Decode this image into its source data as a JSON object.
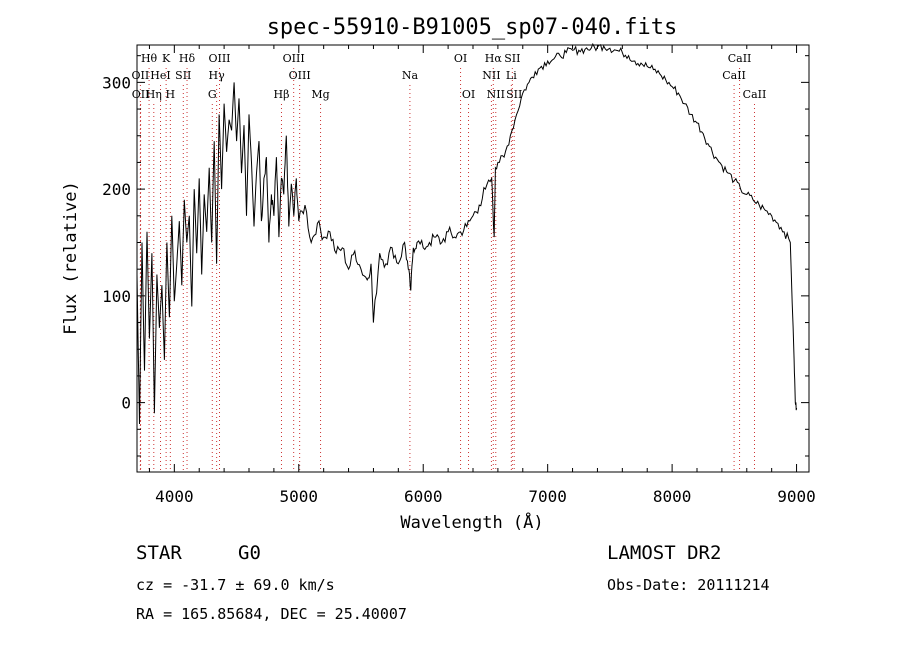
{
  "chart_data": {
    "type": "line",
    "title": "spec-55910-B91005_sp07-040.fits",
    "xlabel": "Wavelength (Å)",
    "ylabel": "Flux (relative)",
    "xlim": [
      3700,
      9100
    ],
    "ylim": [
      -65,
      335
    ],
    "xticks": [
      4000,
      5000,
      6000,
      7000,
      8000,
      9000
    ],
    "xtick_labels": [
      "4000",
      "5000",
      "6000",
      "7000",
      "8000",
      "9000"
    ],
    "yticks": [
      0,
      100,
      200,
      300
    ],
    "ytick_labels": [
      "0",
      "100",
      "200",
      "300"
    ],
    "grid": false,
    "series": [
      {
        "x": [
          3700,
          3720,
          3740,
          3760,
          3780,
          3800,
          3820,
          3840,
          3860,
          3880,
          3900,
          3920,
          3940,
          3960,
          3980,
          4000,
          4020,
          4040,
          4060,
          4080,
          4100,
          4120,
          4140,
          4160,
          4180,
          4200,
          4220,
          4240,
          4260,
          4280,
          4300,
          4320,
          4340,
          4360,
          4380,
          4400,
          4420,
          4440,
          4460,
          4480,
          4500,
          4520,
          4540,
          4560,
          4580,
          4600,
          4620,
          4640,
          4660,
          4680,
          4700,
          4720,
          4740,
          4760,
          4780,
          4800,
          4820,
          4840,
          4860,
          4880,
          4900,
          4920,
          4940,
          4960,
          4980,
          5000,
          5050,
          5100,
          5150,
          5200,
          5250,
          5300,
          5350,
          5400,
          5450,
          5500,
          5550,
          5580,
          5600,
          5650,
          5700,
          5750,
          5800,
          5850,
          5880,
          5900,
          5920,
          5950,
          6000,
          6050,
          6100,
          6150,
          6200,
          6250,
          6300,
          6350,
          6400,
          6450,
          6500,
          6550,
          6570,
          6580,
          6600,
          6650,
          6700,
          6750,
          6800,
          6850,
          6900,
          6950,
          7000,
          7050,
          7100,
          7150,
          7200,
          7250,
          7300,
          7350,
          7400,
          7450,
          7500,
          7550,
          7600,
          7650,
          7700,
          7750,
          7800,
          7850,
          7900,
          7950,
          8000,
          8050,
          8100,
          8150,
          8200,
          8250,
          8300,
          8350,
          8400,
          8450,
          8500,
          8550,
          8600,
          8650,
          8700,
          8750,
          8800,
          8850,
          8900,
          8950,
          8980,
          8990,
          9000
        ],
        "y": [
          120,
          -20,
          150,
          30,
          160,
          60,
          140,
          -10,
          120,
          70,
          110,
          40,
          150,
          80,
          175,
          95,
          130,
          170,
          110,
          190,
          150,
          175,
          90,
          200,
          140,
          210,
          120,
          195,
          160,
          220,
          150,
          245,
          130,
          270,
          200,
          280,
          235,
          265,
          255,
          300,
          245,
          285,
          215,
          260,
          175,
          270,
          225,
          165,
          215,
          245,
          170,
          210,
          230,
          150,
          195,
          175,
          230,
          155,
          210,
          195,
          250,
          165,
          205,
          175,
          210,
          170,
          185,
          150,
          168,
          155,
          160,
          140,
          145,
          125,
          142,
          125,
          115,
          130,
          75,
          140,
          130,
          145,
          130,
          150,
          125,
          105,
          145,
          150,
          145,
          150,
          155,
          150,
          160,
          155,
          160,
          165,
          175,
          185,
          200,
          210,
          155,
          220,
          225,
          230,
          250,
          270,
          290,
          300,
          310,
          315,
          320,
          322,
          325,
          328,
          330,
          330,
          331,
          332,
          333,
          334,
          332,
          330,
          328,
          325,
          320,
          318,
          315,
          312,
          308,
          302,
          296,
          290,
          280,
          270,
          262,
          252,
          240,
          230,
          222,
          215,
          208,
          200,
          195,
          190,
          185,
          180,
          175,
          168,
          160,
          150,
          40,
          0,
          -5
        ]
      }
    ],
    "line_markers": [
      {
        "label": "Hθ",
        "x": 3797,
        "row": 1
      },
      {
        "label": "K",
        "x": 3934,
        "row": 1
      },
      {
        "label": "Hδ",
        "x": 4102,
        "row": 1
      },
      {
        "label": "OIII",
        "x": 4363,
        "row": 1
      },
      {
        "label": "OIII",
        "x": 4959,
        "row": 1
      },
      {
        "label": "OI",
        "x": 6300,
        "row": 1
      },
      {
        "label": "Hα",
        "x": 6563,
        "row": 1
      },
      {
        "label": "SII",
        "x": 6716,
        "row": 1
      },
      {
        "label": "CaII",
        "x": 8542,
        "row": 1
      },
      {
        "label": "OII",
        "x": 3727,
        "row": 2
      },
      {
        "label": "HeI",
        "x": 3889,
        "row": 2
      },
      {
        "label": "SII",
        "x": 4072,
        "row": 2
      },
      {
        "label": "Hγ",
        "x": 4340,
        "row": 2
      },
      {
        "label": "OIII",
        "x": 5007,
        "row": 2
      },
      {
        "label": "Na",
        "x": 5893,
        "row": 2
      },
      {
        "label": "NII",
        "x": 6548,
        "row": 2
      },
      {
        "label": "Li",
        "x": 6708,
        "row": 2
      },
      {
        "label": "CaII",
        "x": 8498,
        "row": 2
      },
      {
        "label": "OII",
        "x": 3729,
        "row": 3
      },
      {
        "label": "Hη",
        "x": 3835,
        "row": 3
      },
      {
        "label": "H",
        "x": 3968,
        "row": 3
      },
      {
        "label": "G",
        "x": 4305,
        "row": 3
      },
      {
        "label": "Hβ",
        "x": 4861,
        "row": 3
      },
      {
        "label": "Mg",
        "x": 5175,
        "row": 3
      },
      {
        "label": "OI",
        "x": 6364,
        "row": 3
      },
      {
        "label": "NII",
        "x": 6583,
        "row": 3
      },
      {
        "label": "SII",
        "x": 6731,
        "row": 3
      },
      {
        "label": "CaII",
        "x": 8662,
        "row": 3
      }
    ]
  },
  "info": {
    "object_class": "STAR",
    "subclass": "G0",
    "survey": "LAMOST DR2",
    "redshift": "cz = -31.7 ± 69.0 km/s",
    "obs_date": "Obs-Date: 20111214",
    "coords": "RA = 165.85684, DEC =  25.40007"
  }
}
